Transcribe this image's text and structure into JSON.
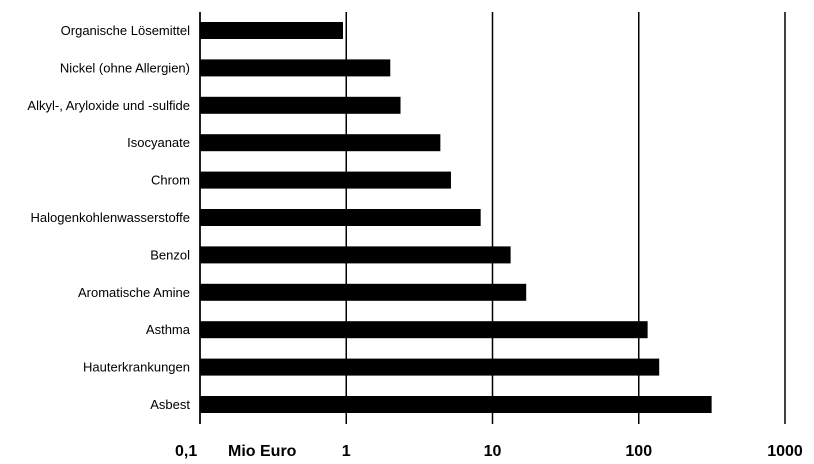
{
  "chart_data": {
    "type": "bar",
    "orientation": "horizontal",
    "x_scale": "log",
    "xlim": [
      0.1,
      1000
    ],
    "grid": "vertical major gridlines at each decade",
    "categories": [
      "Organische Lösemittel",
      "Nickel (ohne Allergien)",
      "Alkyl-, Aryloxide und -sulfide",
      "Isocyanate",
      "Chrom",
      "Halogenkohlenwasserstoffe",
      "Benzol",
      "Aromatische Amine",
      "Asthma",
      "Hauterkrankungen",
      "Asbest"
    ],
    "values": [
      0.95,
      2.0,
      2.35,
      4.4,
      5.2,
      8.3,
      13.3,
      17.0,
      115,
      138,
      315
    ],
    "xticks": [
      "0,1",
      "1",
      "10",
      "100",
      "1000"
    ],
    "xlabel": "Mio Euro",
    "bar_color": "#000000"
  }
}
